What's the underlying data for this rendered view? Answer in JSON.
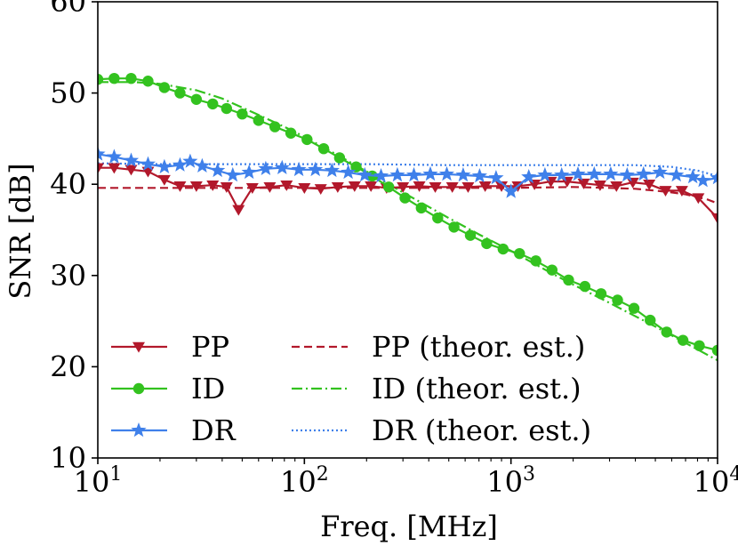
{
  "chart_data": {
    "type": "line",
    "title": "",
    "xlabel": "Freq. [MHz]",
    "ylabel": "SNR [dB]",
    "xscale": "log",
    "xlim": [
      10,
      10000
    ],
    "ylim": [
      10,
      60
    ],
    "grid": false,
    "legend_position": "bottom-left",
    "x_ticks": [
      {
        "value": 10,
        "base": "10",
        "exp": "1"
      },
      {
        "value": 100,
        "base": "10",
        "exp": "2"
      },
      {
        "value": 1000,
        "base": "10",
        "exp": "3"
      },
      {
        "value": 10000,
        "base": "10",
        "exp": "4"
      }
    ],
    "y_ticks": [
      {
        "value": 10,
        "label": "10"
      },
      {
        "value": 20,
        "label": "20"
      },
      {
        "value": 30,
        "label": "30"
      },
      {
        "value": 40,
        "label": "40"
      },
      {
        "value": 50,
        "label": "50"
      },
      {
        "value": 60,
        "label": "60"
      }
    ],
    "series": [
      {
        "name": "PP",
        "legend_label": "PP",
        "color": "#b2182b",
        "style": "solid",
        "marker": "triangle-down",
        "x": [
          10,
          12,
          14.5,
          17.5,
          21,
          25,
          30,
          36,
          42,
          48,
          56,
          68,
          82,
          100,
          120,
          145,
          175,
          210,
          250,
          300,
          360,
          430,
          520,
          620,
          750,
          900,
          1080,
          1300,
          1560,
          1870,
          2250,
          2700,
          3240,
          3890,
          4670,
          5600,
          6720,
          8070,
          10000
        ],
        "y": [
          41.8,
          41.8,
          41.6,
          41.4,
          40.5,
          39.8,
          39.8,
          39.9,
          39.7,
          37.2,
          39.6,
          39.7,
          39.9,
          39.6,
          39.5,
          39.7,
          39.8,
          39.8,
          39.6,
          39.7,
          39.8,
          39.7,
          39.7,
          39.7,
          39.8,
          39.8,
          39.8,
          40.0,
          40.3,
          40.3,
          40.1,
          39.9,
          39.8,
          40.2,
          40.0,
          39.3,
          39.3,
          38.5,
          36.3
        ]
      },
      {
        "name": "ID",
        "legend_label": "ID",
        "color": "#33c21f",
        "style": "solid",
        "marker": "circle",
        "x": [
          10,
          12,
          14.5,
          17.5,
          21,
          25,
          30,
          36,
          42,
          50,
          60,
          72,
          86,
          103,
          124,
          148,
          178,
          213,
          256,
          307,
          368,
          442,
          530,
          636,
          763,
          916,
          1100,
          1320,
          1580,
          1900,
          2280,
          2730,
          3280,
          3940,
          4720,
          5670,
          6800,
          8160,
          10000
        ],
        "y": [
          51.5,
          51.6,
          51.6,
          51.3,
          50.6,
          50.0,
          49.3,
          48.8,
          48.3,
          47.7,
          47.0,
          46.3,
          45.6,
          44.9,
          43.9,
          42.9,
          41.9,
          40.9,
          39.7,
          38.5,
          37.4,
          36.3,
          35.3,
          34.4,
          33.5,
          32.9,
          32.4,
          31.6,
          30.6,
          29.5,
          28.8,
          28.0,
          27.3,
          26.4,
          25.1,
          23.8,
          22.9,
          22.3,
          21.8
        ]
      },
      {
        "name": "DR",
        "legend_label": "DR",
        "color": "#3f80ea",
        "style": "solid",
        "marker": "star",
        "x": [
          10,
          12,
          14.5,
          17.5,
          21,
          25,
          28,
          32,
          38,
          45,
          54,
          65,
          78,
          94,
          113,
          136,
          163,
          196,
          235,
          282,
          339,
          407,
          489,
          587,
          705,
          847,
          1000,
          1220,
          1460,
          1760,
          2110,
          2530,
          3040,
          3650,
          4380,
          5260,
          6320,
          7590,
          8500,
          10000
        ],
        "y": [
          43.3,
          43.0,
          42.6,
          42.2,
          41.9,
          42.1,
          42.5,
          42.0,
          41.5,
          41.0,
          41.3,
          41.7,
          41.8,
          41.6,
          41.6,
          41.5,
          41.3,
          41.0,
          40.9,
          41.0,
          41.0,
          41.1,
          41.1,
          41.0,
          40.9,
          40.7,
          39.2,
          40.8,
          41.0,
          41.0,
          41.1,
          41.1,
          41.1,
          41.0,
          41.1,
          41.3,
          41.0,
          40.8,
          40.4,
          40.7
        ]
      },
      {
        "name": "PP (theor. est.)",
        "legend_label": "PP (theor. est.)",
        "color": "#b2182b",
        "style": "dashed",
        "marker": "none",
        "x": [
          10,
          20,
          50,
          100,
          200,
          500,
          1000,
          2000,
          3000,
          4000,
          5000,
          6000,
          7000,
          8000,
          9000,
          10000
        ],
        "y": [
          39.6,
          39.6,
          39.6,
          39.6,
          39.6,
          39.6,
          39.6,
          39.7,
          39.6,
          39.5,
          39.3,
          39.1,
          38.9,
          38.6,
          38.3,
          37.9
        ]
      },
      {
        "name": "ID (theor. est.)",
        "legend_label": "ID  (theor. est.)",
        "color": "#33c21f",
        "style": "dashdot",
        "marker": "none",
        "x": [
          10,
          15,
          20,
          30,
          40,
          60,
          80,
          100,
          150,
          200,
          300,
          500,
          700,
          1000,
          1500,
          2000,
          3000,
          5000,
          7000,
          10000
        ],
        "y": [
          51.2,
          51.2,
          51.0,
          50.3,
          49.4,
          47.6,
          46.3,
          45.2,
          43.0,
          41.4,
          39.1,
          36.3,
          34.5,
          32.7,
          30.5,
          29.0,
          27.0,
          24.4,
          22.6,
          20.7
        ]
      },
      {
        "name": "DR (theor. est.)",
        "legend_label": "DR (theor. est.)",
        "color": "#3f80ea",
        "style": "dotted",
        "marker": "none",
        "x": [
          10,
          20,
          50,
          100,
          200,
          500,
          1000,
          2000,
          4000,
          6000,
          8000,
          10000
        ],
        "y": [
          42.3,
          42.2,
          42.2,
          42.2,
          42.2,
          42.1,
          42.1,
          42.1,
          42.1,
          41.9,
          41.5,
          40.9
        ]
      }
    ]
  }
}
